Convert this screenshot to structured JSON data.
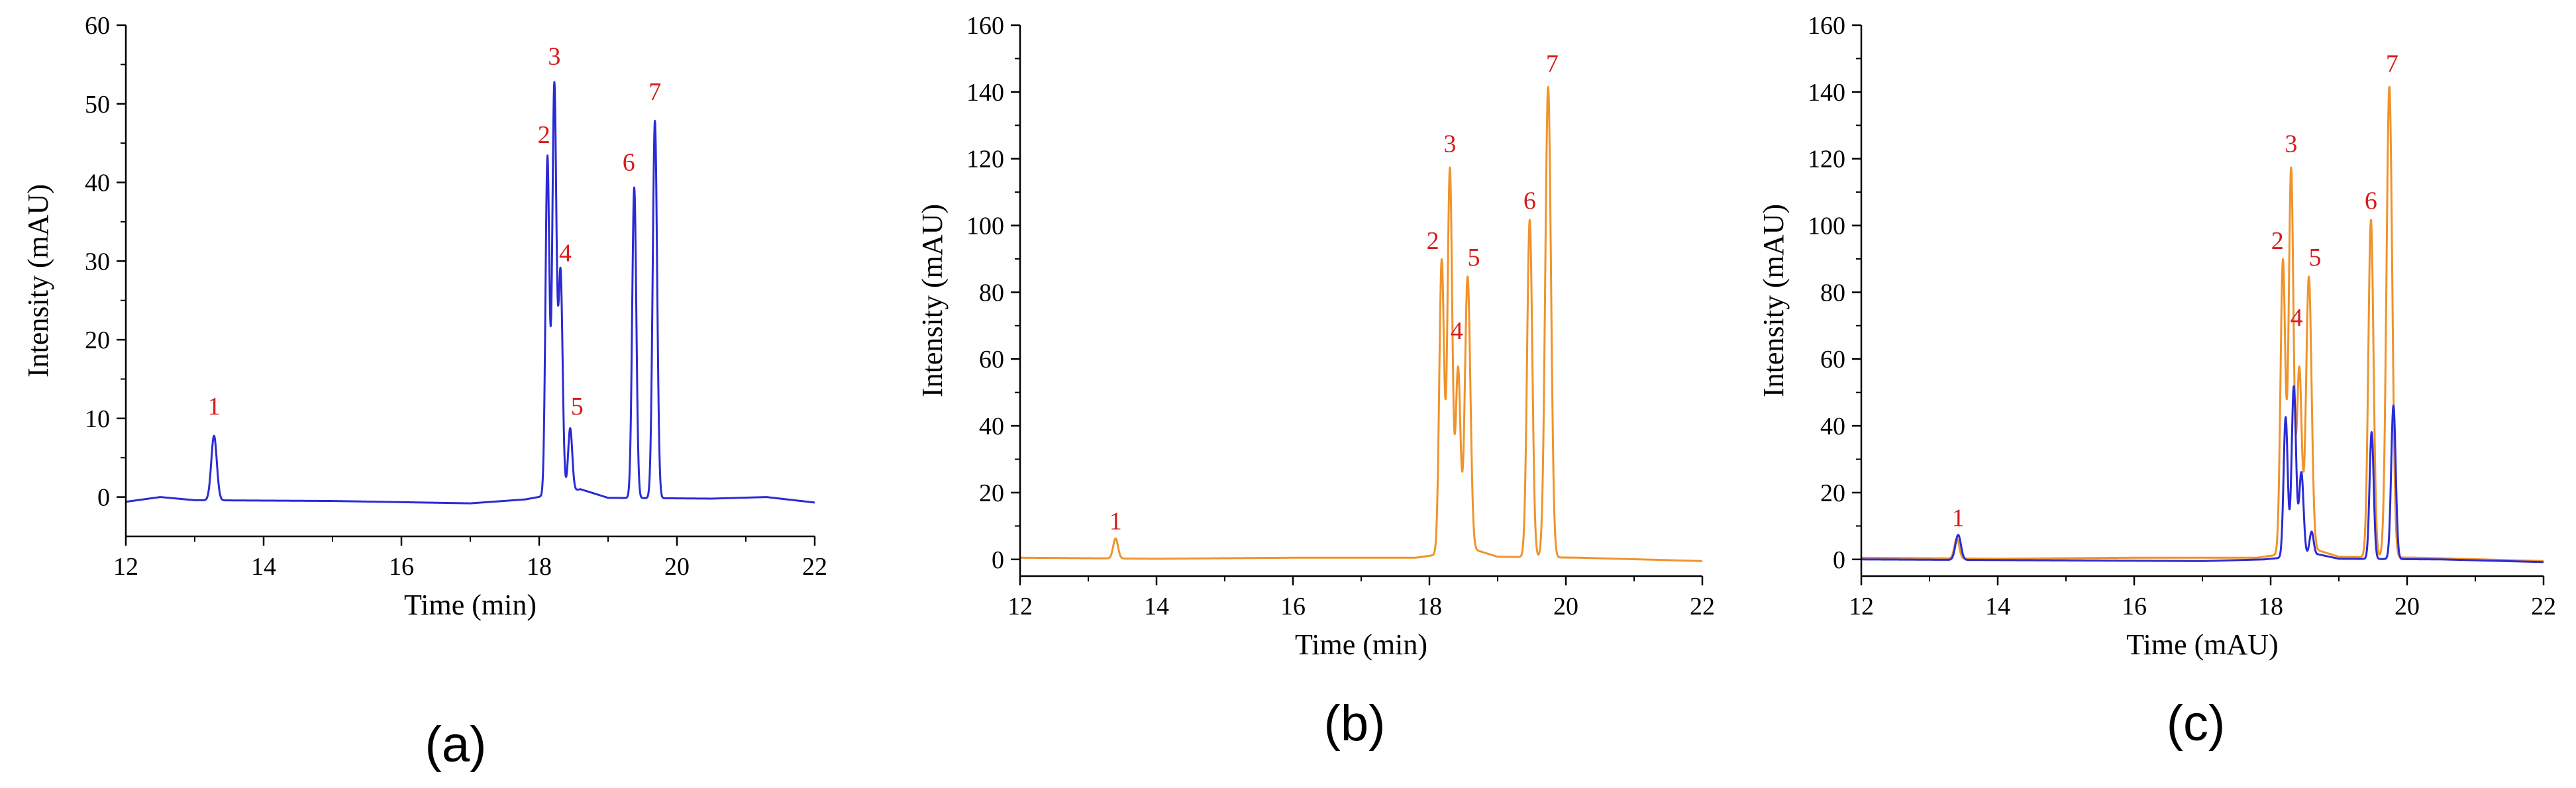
{
  "colors": {
    "blue": "#2b2bd6",
    "orange": "#f0932b",
    "label": "#d81b1b",
    "axis": "#000000"
  },
  "chart_data": [
    {
      "id": "a",
      "type": "line",
      "panel_label": "(a)",
      "xlabel": "Time (min)",
      "ylabel": "Intensity (mAU)",
      "xlim": [
        12,
        22
      ],
      "ylim": [
        -5,
        60
      ],
      "xticks": [
        12,
        14,
        16,
        18,
        20,
        22
      ],
      "yticks": [
        0,
        10,
        20,
        30,
        40,
        50,
        60
      ],
      "series": [
        {
          "name": "blue",
          "color": "#2b2bd6",
          "baseline": [
            [
              12,
              -0.6
            ],
            [
              12.5,
              0.0
            ],
            [
              13.0,
              -0.4
            ],
            [
              15,
              -0.5
            ],
            [
              17,
              -0.8
            ],
            [
              17.8,
              -0.3
            ],
            [
              18.6,
              1.0
            ],
            [
              19.0,
              -0.1
            ],
            [
              20.5,
              -0.2
            ],
            [
              21.3,
              0.0
            ],
            [
              22,
              -0.7
            ]
          ],
          "peaks": [
            {
              "x": 13.28,
              "h": 8.2,
              "w": 0.04
            },
            {
              "x": 18.12,
              "h": 43.0,
              "w": 0.028
            },
            {
              "x": 18.22,
              "h": 52.0,
              "w": 0.03
            },
            {
              "x": 18.31,
              "h": 28.0,
              "w": 0.03
            },
            {
              "x": 18.45,
              "h": 8.0,
              "w": 0.03
            },
            {
              "x": 19.38,
              "h": 39.5,
              "w": 0.03
            },
            {
              "x": 19.68,
              "h": 48.0,
              "w": 0.032
            }
          ]
        }
      ],
      "annotations": [
        {
          "text": "1",
          "x": 13.28,
          "y": 10.5
        },
        {
          "text": "2",
          "x": 18.07,
          "y": 45.0
        },
        {
          "text": "3",
          "x": 18.22,
          "y": 55.0
        },
        {
          "text": "4",
          "x": 18.38,
          "y": 30.0
        },
        {
          "text": "5",
          "x": 18.55,
          "y": 10.5
        },
        {
          "text": "6",
          "x": 19.3,
          "y": 41.5
        },
        {
          "text": "7",
          "x": 19.68,
          "y": 50.5
        }
      ]
    },
    {
      "id": "b",
      "type": "line",
      "panel_label": "(b)",
      "xlabel": "Time (min)",
      "ylabel": "Intensity (mAU)",
      "xlim": [
        12,
        22
      ],
      "ylim": [
        -5,
        160
      ],
      "xticks": [
        12,
        14,
        16,
        18,
        20,
        22
      ],
      "yticks": [
        0,
        20,
        40,
        60,
        80,
        100,
        120,
        140,
        160
      ],
      "series": [
        {
          "name": "orange",
          "color": "#f0932b",
          "baseline": [
            [
              12,
              0.5
            ],
            [
              14,
              0.2
            ],
            [
              16,
              0.5
            ],
            [
              17.8,
              0.5
            ],
            [
              18.65,
              3.0
            ],
            [
              19.0,
              0.8
            ],
            [
              20.2,
              0.5
            ],
            [
              22,
              -0.5
            ]
          ],
          "peaks": [
            {
              "x": 13.4,
              "h": 6.0,
              "w": 0.035
            },
            {
              "x": 18.18,
              "h": 88.0,
              "w": 0.035
            },
            {
              "x": 18.3,
              "h": 115.0,
              "w": 0.035
            },
            {
              "x": 18.42,
              "h": 55.0,
              "w": 0.035
            },
            {
              "x": 18.56,
              "h": 82.0,
              "w": 0.04
            },
            {
              "x": 19.47,
              "h": 101.0,
              "w": 0.038
            },
            {
              "x": 19.74,
              "h": 141.0,
              "w": 0.042
            }
          ]
        }
      ],
      "annotations": [
        {
          "text": "1",
          "x": 13.4,
          "y": 9.0
        },
        {
          "text": "2",
          "x": 18.05,
          "y": 93.0
        },
        {
          "text": "3",
          "x": 18.3,
          "y": 122.0
        },
        {
          "text": "4",
          "x": 18.4,
          "y": 66.0
        },
        {
          "text": "5",
          "x": 18.65,
          "y": 88.0
        },
        {
          "text": "6",
          "x": 19.47,
          "y": 105.0
        },
        {
          "text": "7",
          "x": 19.8,
          "y": 146.0
        }
      ]
    },
    {
      "id": "c",
      "type": "line",
      "panel_label": "(c)",
      "xlabel": "Time (mAU)",
      "ylabel": "Intensity (mAU)",
      "xlim": [
        12,
        22
      ],
      "ylim": [
        -5,
        160
      ],
      "xticks": [
        12,
        14,
        16,
        18,
        20,
        22
      ],
      "yticks": [
        0,
        20,
        40,
        60,
        80,
        100,
        120,
        140,
        160
      ],
      "series": [
        {
          "name": "orange",
          "color": "#f0932b",
          "baseline": [
            [
              12,
              0.5
            ],
            [
              14,
              0.2
            ],
            [
              16,
              0.5
            ],
            [
              17.8,
              0.5
            ],
            [
              18.65,
              3.0
            ],
            [
              19.0,
              0.8
            ],
            [
              20.2,
              0.5
            ],
            [
              22,
              -0.5
            ]
          ],
          "peaks": [
            {
              "x": 13.4,
              "h": 6.0,
              "w": 0.035
            },
            {
              "x": 18.18,
              "h": 88.0,
              "w": 0.035
            },
            {
              "x": 18.3,
              "h": 115.0,
              "w": 0.035
            },
            {
              "x": 18.42,
              "h": 55.0,
              "w": 0.035
            },
            {
              "x": 18.56,
              "h": 82.0,
              "w": 0.04
            },
            {
              "x": 19.47,
              "h": 101.0,
              "w": 0.038
            },
            {
              "x": 19.74,
              "h": 141.0,
              "w": 0.042
            }
          ]
        },
        {
          "name": "blue",
          "color": "#2b2bd6",
          "baseline": [
            [
              12,
              0.0
            ],
            [
              14,
              -0.2
            ],
            [
              17,
              -0.5
            ],
            [
              17.9,
              0.0
            ],
            [
              18.7,
              1.5
            ],
            [
              19.0,
              0.2
            ],
            [
              20.5,
              0.0
            ],
            [
              22,
              -0.8
            ]
          ],
          "peaks": [
            {
              "x": 13.42,
              "h": 7.5,
              "w": 0.04
            },
            {
              "x": 18.22,
              "h": 42.0,
              "w": 0.03
            },
            {
              "x": 18.34,
              "h": 51.0,
              "w": 0.032
            },
            {
              "x": 18.45,
              "h": 25.0,
              "w": 0.032
            },
            {
              "x": 18.6,
              "h": 7.0,
              "w": 0.03
            },
            {
              "x": 19.48,
              "h": 38.0,
              "w": 0.03
            },
            {
              "x": 19.8,
              "h": 46.0,
              "w": 0.033
            }
          ]
        }
      ],
      "annotations": [
        {
          "text": "1",
          "x": 13.42,
          "y": 10.0
        },
        {
          "text": "2",
          "x": 18.1,
          "y": 93.0
        },
        {
          "text": "3",
          "x": 18.3,
          "y": 122.0
        },
        {
          "text": "4",
          "x": 18.38,
          "y": 70.0
        },
        {
          "text": "5",
          "x": 18.65,
          "y": 88.0
        },
        {
          "text": "6",
          "x": 19.47,
          "y": 105.0
        },
        {
          "text": "7",
          "x": 19.78,
          "y": 146.0
        }
      ]
    }
  ]
}
